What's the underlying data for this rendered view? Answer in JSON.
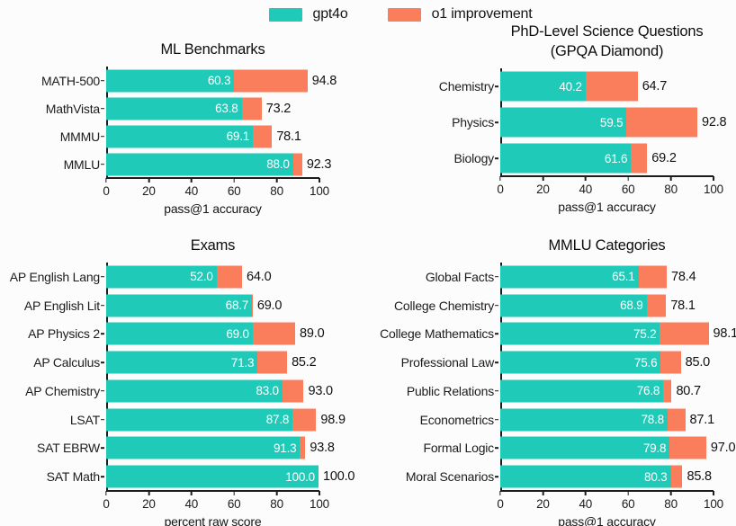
{
  "legend": {
    "items": [
      {
        "label": "gpt4o",
        "color": "#1fcbb8"
      },
      {
        "label": "o1 improvement",
        "color": "#fb7e5c"
      }
    ]
  },
  "colors": {
    "gpt4o": "#1fcbb8",
    "o1_improvement": "#fb7e5c",
    "axis": "#1c1c1c",
    "background": "#fcfcfc",
    "inner_value_text": "#ffffff",
    "outer_value_text": "#111111"
  },
  "chart_data": [
    {
      "id": "ml-benchmarks",
      "type": "bar",
      "orientation": "horizontal",
      "title": "ML Benchmarks",
      "xlabel": "pass@1 accuracy",
      "xlim": [
        0,
        100
      ],
      "xticks": [
        0,
        20,
        40,
        60,
        80,
        100
      ],
      "grid": false,
      "categories": [
        "MATH-500",
        "MathVista",
        "MMMU",
        "MMLU"
      ],
      "series": [
        {
          "name": "gpt4o",
          "values": [
            60.3,
            63.8,
            69.1,
            88.0
          ]
        },
        {
          "name": "o1",
          "values": [
            94.8,
            73.2,
            78.1,
            92.3
          ]
        }
      ]
    },
    {
      "id": "phd-science-gpqa",
      "type": "bar",
      "orientation": "horizontal",
      "title": "PhD-Level Science Questions\n(GPQA Diamond)",
      "xlabel": "pass@1 accuracy",
      "xlim": [
        0,
        100
      ],
      "xticks": [
        0,
        20,
        40,
        60,
        80,
        100
      ],
      "grid": false,
      "categories": [
        "Chemistry",
        "Physics",
        "Biology"
      ],
      "series": [
        {
          "name": "gpt4o",
          "values": [
            40.2,
            59.5,
            61.6
          ]
        },
        {
          "name": "o1",
          "values": [
            64.7,
            92.8,
            69.2
          ]
        }
      ]
    },
    {
      "id": "exams",
      "type": "bar",
      "orientation": "horizontal",
      "title": "Exams",
      "xlabel": "percent raw score",
      "xlim": [
        0,
        100
      ],
      "xticks": [
        0,
        20,
        40,
        60,
        80,
        100
      ],
      "grid": false,
      "categories": [
        "AP English Lang",
        "AP English Lit",
        "AP Physics 2",
        "AP Calculus",
        "AP Chemistry",
        "LSAT",
        "SAT EBRW",
        "SAT Math"
      ],
      "series": [
        {
          "name": "gpt4o",
          "values": [
            52.0,
            68.7,
            69.0,
            71.3,
            83.0,
            87.8,
            91.3,
            100.0
          ]
        },
        {
          "name": "o1",
          "values": [
            64.0,
            69.0,
            89.0,
            85.2,
            93.0,
            98.9,
            93.8,
            100.0
          ]
        }
      ]
    },
    {
      "id": "mmlu-categories",
      "type": "bar",
      "orientation": "horizontal",
      "title": "MMLU Categories",
      "xlabel": "pass@1 accuracy",
      "xlim": [
        0,
        100
      ],
      "xticks": [
        0,
        20,
        40,
        60,
        80,
        100
      ],
      "grid": false,
      "categories": [
        "Global Facts",
        "College Chemistry",
        "College Mathematics",
        "Professional Law",
        "Public Relations",
        "Econometrics",
        "Formal Logic",
        "Moral Scenarios"
      ],
      "series": [
        {
          "name": "gpt4o",
          "values": [
            65.1,
            68.9,
            75.2,
            75.6,
            76.8,
            78.8,
            79.8,
            80.3
          ]
        },
        {
          "name": "o1",
          "values": [
            78.4,
            78.1,
            98.1,
            85.0,
            80.7,
            87.1,
            97.0,
            85.8
          ]
        }
      ]
    }
  ]
}
